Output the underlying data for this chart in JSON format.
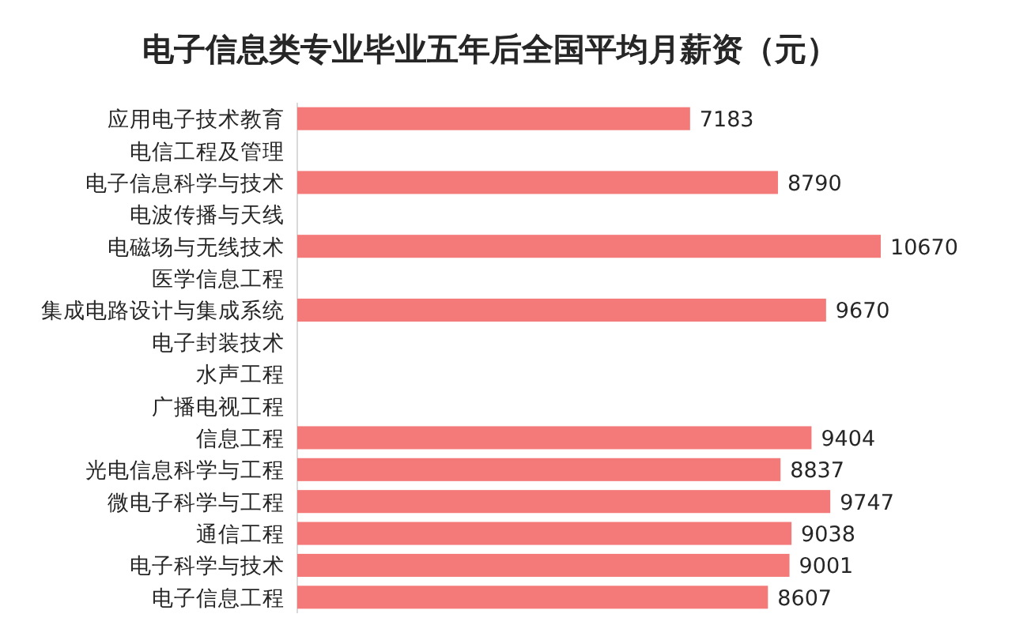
{
  "chart_data": {
    "type": "bar",
    "orientation": "horizontal",
    "title": "电子信息类专业毕业五年后全国平均月薪资（元）",
    "categories": [
      "应用电子技术教育",
      "电信工程及管理",
      "电子信息科学与技术",
      "电波传播与天线",
      "电磁场与无线技术",
      "医学信息工程",
      "集成电路设计与集成系统",
      "电子封装技术",
      "水声工程",
      "广播电视工程",
      "信息工程",
      "光电信息科学与工程",
      "微电子科学与工程",
      "通信工程",
      "电子科学与技术",
      "电子信息工程"
    ],
    "values": [
      7183,
      null,
      8790,
      null,
      10670,
      null,
      9670,
      null,
      null,
      null,
      9404,
      8837,
      9747,
      9038,
      9001,
      8607
    ],
    "color": "#f47a7a",
    "data_labels": true
  }
}
